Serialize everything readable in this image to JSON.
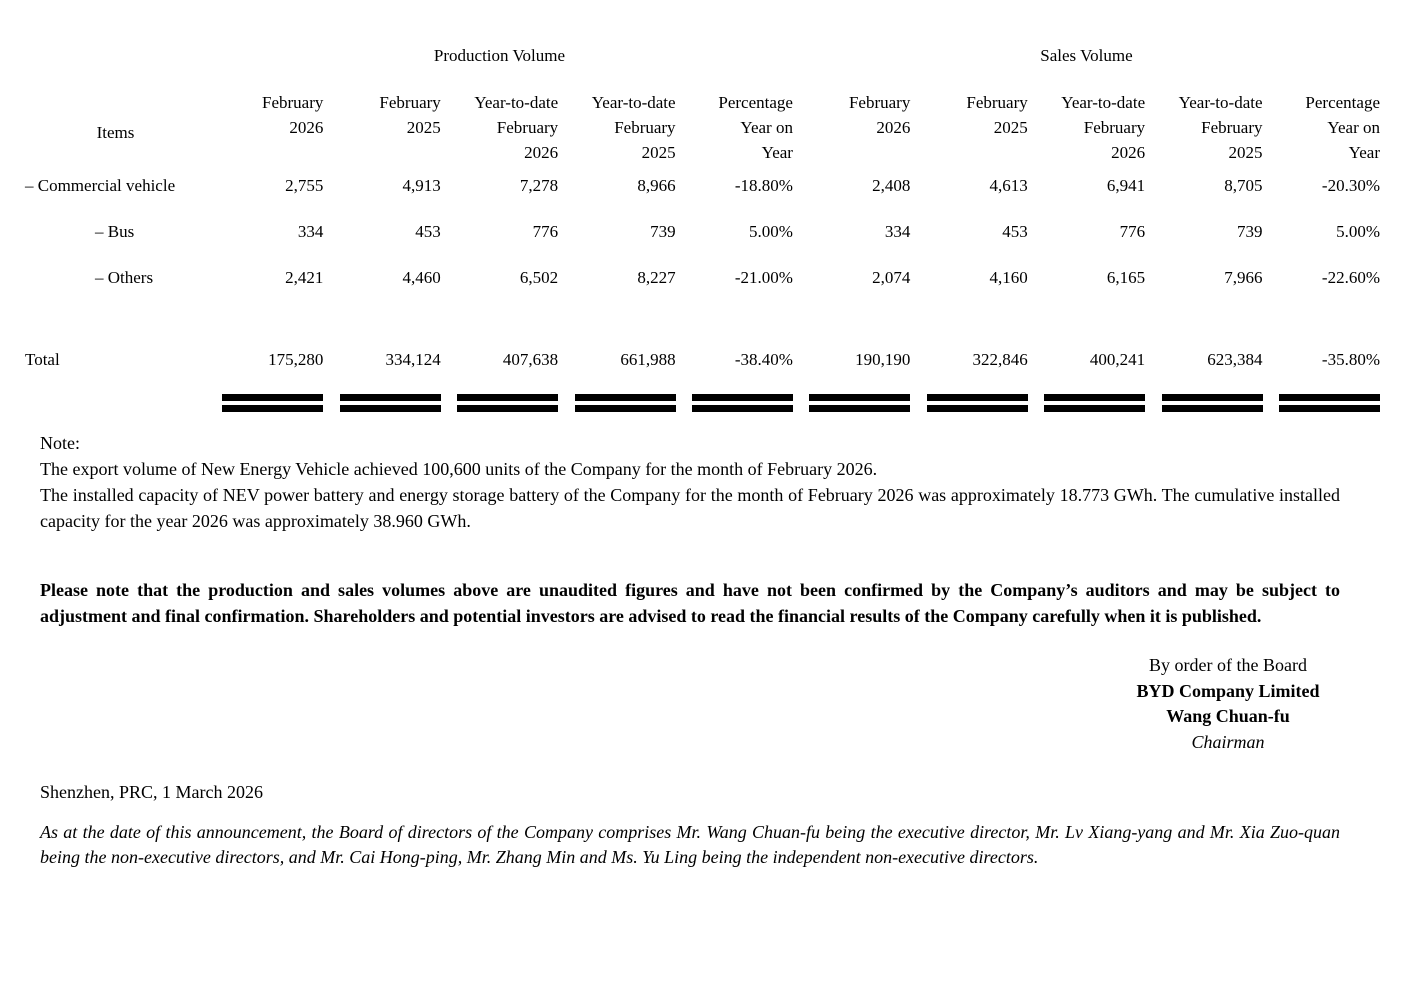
{
  "table": {
    "production_volume_header": "Production Volume",
    "sales_volume_header": "Sales Volume",
    "items_header": "Items",
    "columns": [
      "February\n2026",
      "February\n2025",
      "Year-to-date\nFebruary\n2026",
      "Year-to-date\nFebruary\n2025",
      "Percentage\nYear on\nYear",
      "February\n2026",
      "February\n2025",
      "Year-to-date\nFebruary\n2026",
      "Year-to-date\nFebruary\n2025",
      "Percentage\nYear on\nYear"
    ],
    "rows": [
      {
        "label": "– Commercial vehicle",
        "values": [
          "2,755",
          "4,913",
          "7,278",
          "8,966",
          "-18.80%",
          "2,408",
          "4,613",
          "6,941",
          "8,705",
          "-20.30%"
        ]
      },
      {
        "label": "– Bus",
        "values": [
          "334",
          "453",
          "776",
          "739",
          "5.00%",
          "334",
          "453",
          "776",
          "739",
          "5.00%"
        ]
      },
      {
        "label": "– Others",
        "values": [
          "2,421",
          "4,460",
          "6,502",
          "8,227",
          "-21.00%",
          "2,074",
          "4,160",
          "6,165",
          "7,966",
          "-22.60%"
        ]
      }
    ],
    "total_row": {
      "label": "Total",
      "values": [
        "175,280",
        "334,124",
        "407,638",
        "661,988",
        "-38.40%",
        "190,190",
        "322,846",
        "400,241",
        "623,384",
        "-35.80%"
      ]
    }
  },
  "note": {
    "heading": "Note:",
    "export_line": "The export volume of New Energy Vehicle achieved 100,600 units of the Company for the month of February 2026.",
    "battery_line": "The installed capacity of NEV power battery and energy storage battery of the Company for the month of February 2026 was approximately 18.773 GWh. The cumulative installed capacity for the year 2026 was approximately 38.960 GWh."
  },
  "disclaimer": "Please note that the production and sales volumes above are unaudited figures and have not been confirmed by the Company’s auditors and may be subject to adjustment and final confirmation. Shareholders and potential investors are advised to read the financial results of the Company carefully when it is published.",
  "signature": {
    "by_order": "By order of the Board",
    "company": "BYD Company Limited",
    "name": "Wang Chuan-fu",
    "title": "Chairman"
  },
  "dateline": "Shenzhen, PRC, 1 March 2026",
  "directors_note": "As at the date of this announcement, the Board of directors of the Company comprises Mr. Wang Chuan-fu being the executive director, Mr. Lv Xiang-yang and Mr. Xia Zuo-quan being the non-executive directors, and Mr. Cai Hong-ping, Mr. Zhang Min and Ms. Yu Ling being the independent non-executive directors."
}
